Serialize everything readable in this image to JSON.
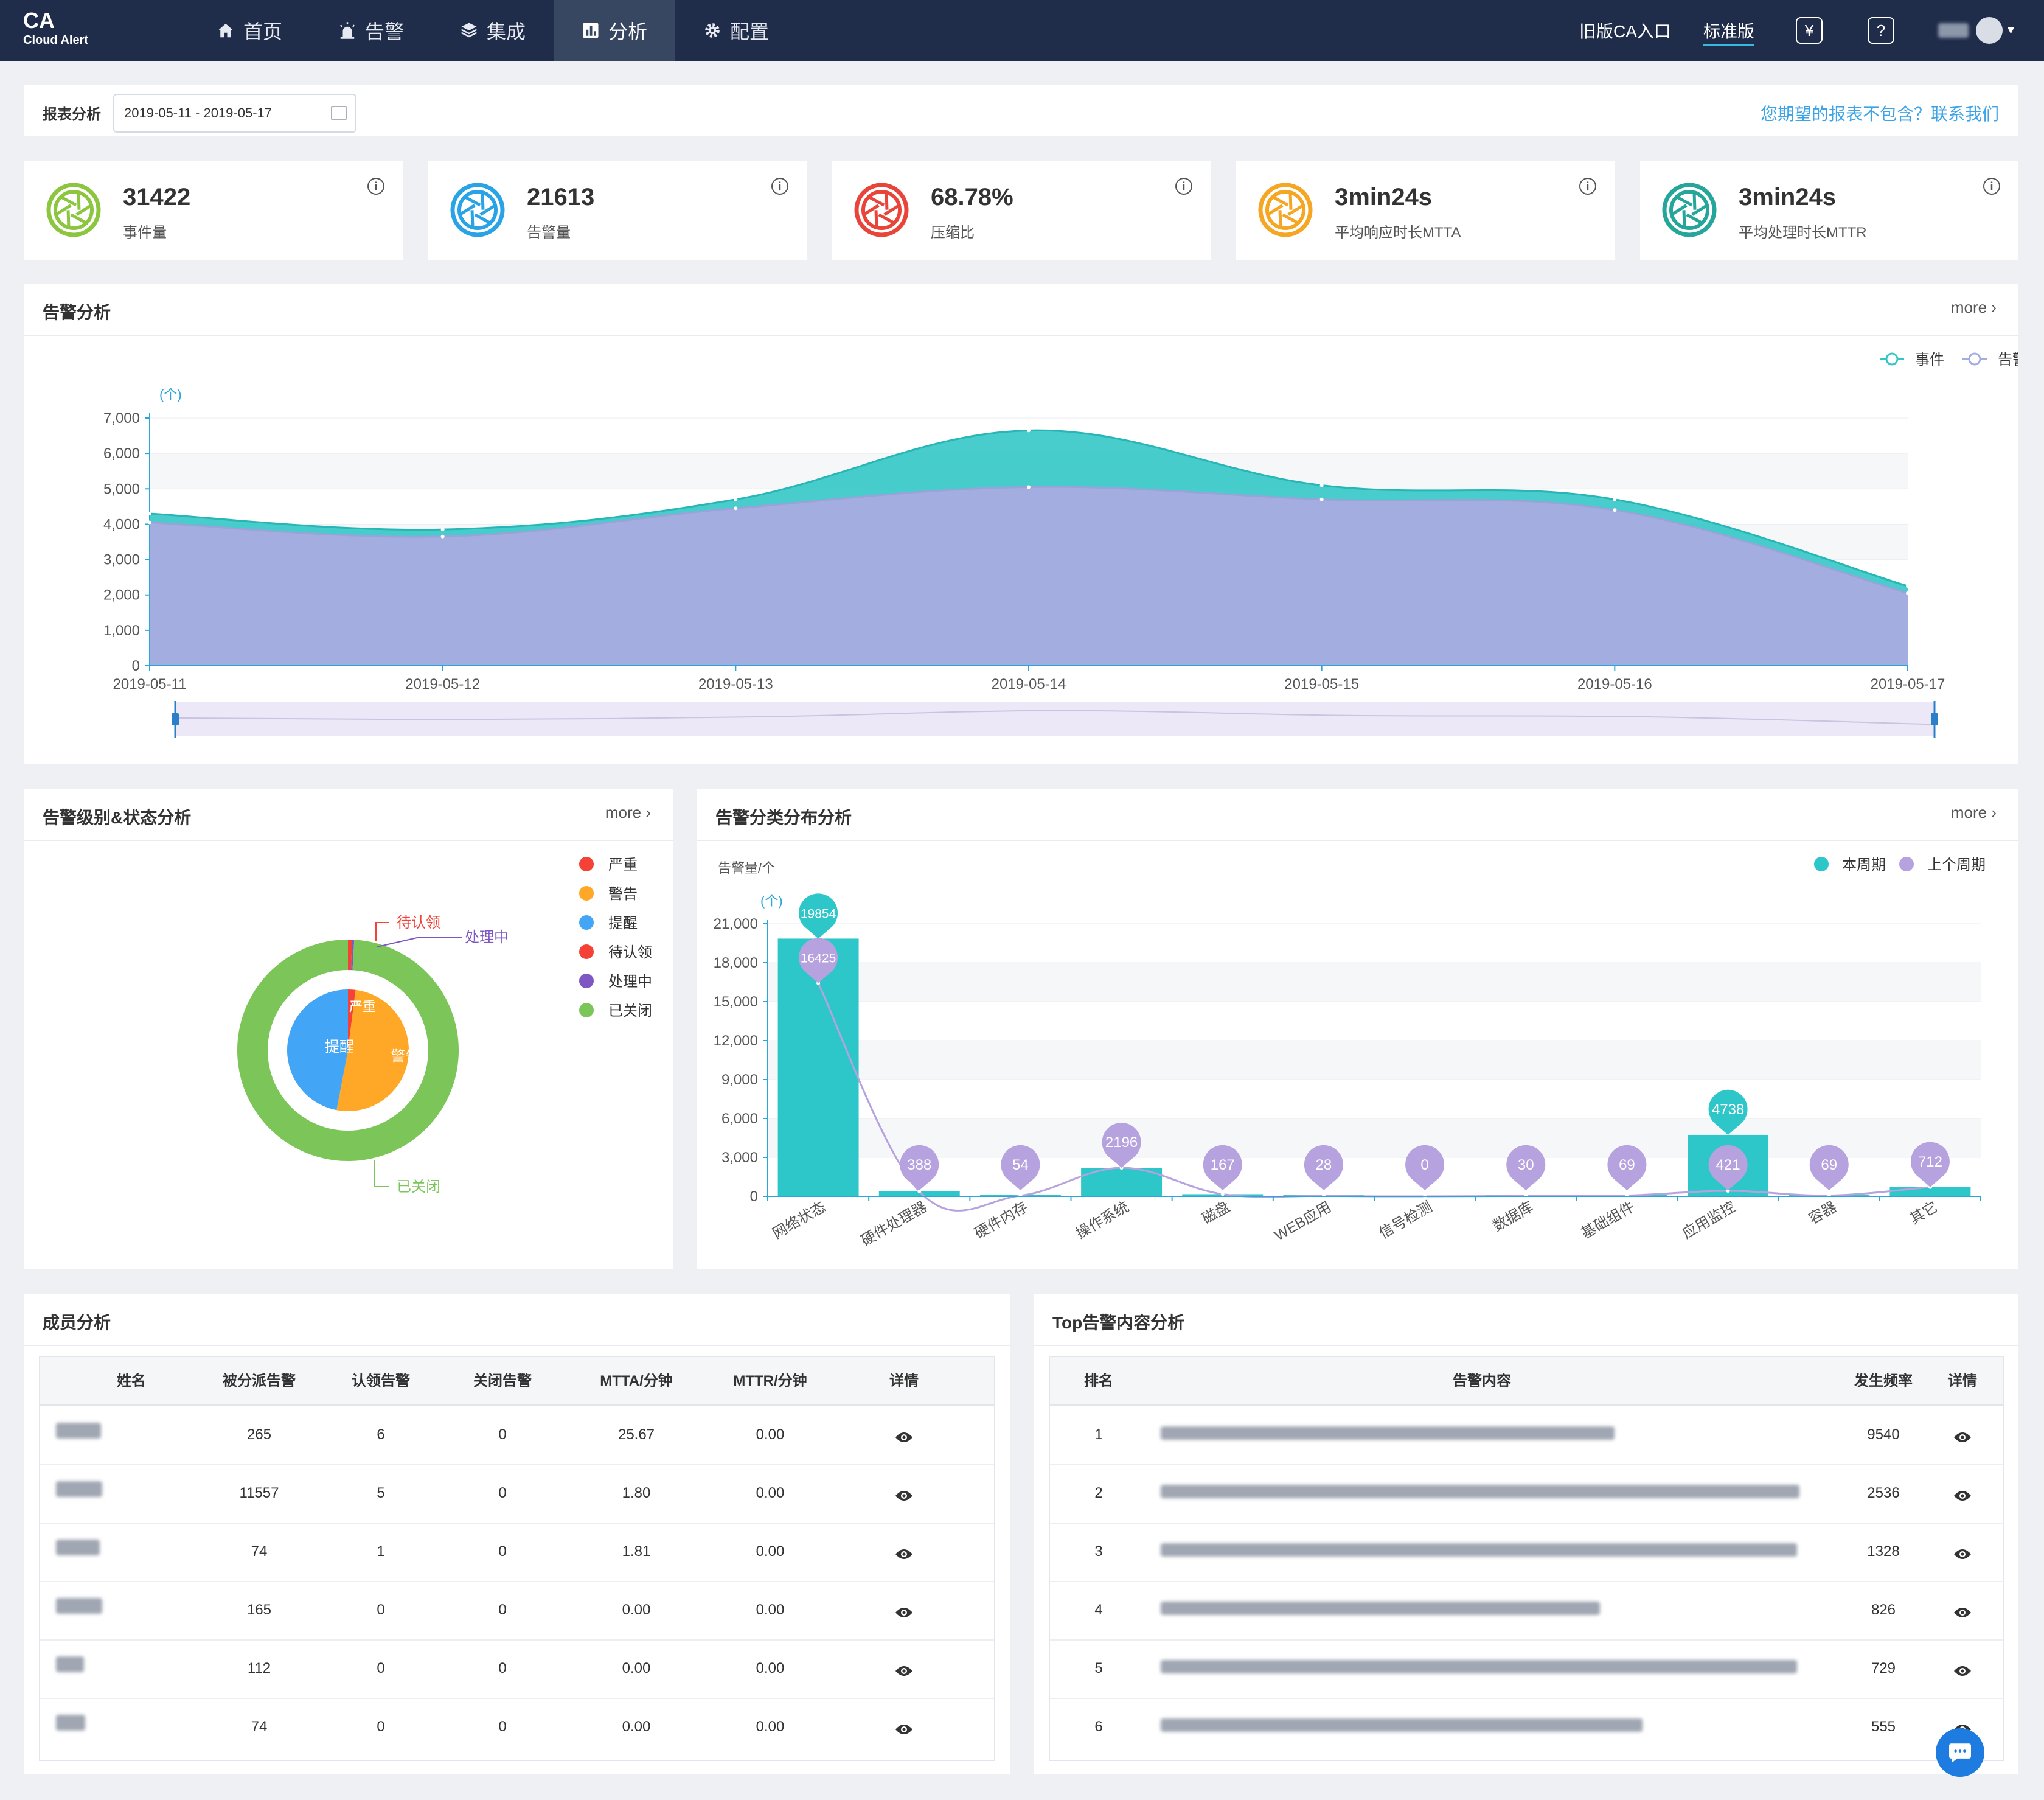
{
  "app": {
    "logo": "CA",
    "logo_sub": "Cloud Alert"
  },
  "nav": [
    {
      "label": "首页",
      "icon": "home-icon"
    },
    {
      "label": "告警",
      "icon": "alarm-light-icon"
    },
    {
      "label": "集成",
      "icon": "layers-icon"
    },
    {
      "label": "分析",
      "icon": "bar-chart-icon",
      "active": true
    },
    {
      "label": "配置",
      "icon": "gear-icon"
    }
  ],
  "topbar": {
    "old_entry": "旧版CA入口",
    "edition": "标准版",
    "yen_icon": "¥",
    "help_icon": "?"
  },
  "filter": {
    "label": "报表分析",
    "date_range": "2019-05-11 - 2019-05-17",
    "contact": "您期望的报表不包含？联系我们"
  },
  "kpis": [
    {
      "value": "31422",
      "label": "事件量",
      "color": "#8cc63f"
    },
    {
      "value": "21613",
      "label": "告警量",
      "color": "#29a3e6"
    },
    {
      "value": "68.78%",
      "label": "压缩比",
      "color": "#e8443a"
    },
    {
      "value": "3min24s",
      "label": "平均响应时长MTTA",
      "color": "#f5a623"
    },
    {
      "value": "3min24s",
      "label": "平均处理时长MTTR",
      "color": "#26a69a"
    }
  ],
  "alarm_analysis": {
    "title": "告警分析",
    "more": "more"
  },
  "level_status": {
    "title": "告警级别&状态分析",
    "more": "more",
    "legend": [
      {
        "label": "严重",
        "color": "#f44336"
      },
      {
        "label": "警告",
        "color": "#ffa726"
      },
      {
        "label": "提醒",
        "color": "#42a5f5"
      },
      {
        "label": "待认领",
        "color": "#f44336"
      },
      {
        "label": "处理中",
        "color": "#7e57c2"
      },
      {
        "label": "已关闭",
        "color": "#7cc659"
      }
    ],
    "callouts": {
      "pending": "待认领",
      "processing": "处理中",
      "closed": "已关闭",
      "inner_severe": "严重",
      "inner_warn": "警告",
      "inner_remind": "提醒"
    }
  },
  "category": {
    "title": "告警分类分布分析",
    "more": "more",
    "ylabel": "告警量/个",
    "legend_this": "本周期",
    "legend_last": "上个周期"
  },
  "members": {
    "title": "成员分析",
    "headers": [
      "姓名",
      "被分派告警",
      "认领告警",
      "关闭告警",
      "MTTA/分钟",
      "MTTR/分钟",
      "详情"
    ],
    "rows": [
      [
        "265",
        "6",
        "0",
        "25.67",
        "0.00"
      ],
      [
        "11557",
        "5",
        "0",
        "1.80",
        "0.00"
      ],
      [
        "74",
        "1",
        "0",
        "1.81",
        "0.00"
      ],
      [
        "165",
        "0",
        "0",
        "0.00",
        "0.00"
      ],
      [
        "112",
        "0",
        "0",
        "0.00",
        "0.00"
      ],
      [
        "74",
        "0",
        "0",
        "0.00",
        "0.00"
      ]
    ]
  },
  "top_alerts": {
    "title": "Top告警内容分析",
    "headers": [
      "排名",
      "告警内容",
      "发生频率",
      "详情"
    ],
    "rows": [
      [
        "1",
        "9540"
      ],
      [
        "2",
        "2536"
      ],
      [
        "3",
        "1328"
      ],
      [
        "4",
        "826"
      ],
      [
        "5",
        "729"
      ],
      [
        "6",
        "555"
      ]
    ]
  },
  "chart_data": [
    {
      "type": "area",
      "unit_label": "(个)",
      "x": [
        "2019-05-11",
        "2019-05-12",
        "2019-05-13",
        "2019-05-14",
        "2019-05-15",
        "2019-05-16",
        "2019-05-17"
      ],
      "series": [
        {
          "name": "事件",
          "values": [
            4300,
            3850,
            4700,
            6650,
            5100,
            4700,
            2250
          ],
          "color": "#34c6c6"
        },
        {
          "name": "告警",
          "values": [
            4050,
            3650,
            4450,
            5050,
            4700,
            4400,
            2050
          ],
          "color": "#a4addf"
        }
      ],
      "ylim": [
        0,
        7000
      ],
      "yticks": [
        "0",
        "1,000",
        "2,000",
        "3,000",
        "4,000",
        "5,000",
        "6,000",
        "7,000"
      ],
      "legend": "top-right",
      "grid": true
    },
    {
      "type": "pie",
      "inner": [
        {
          "name": "严重",
          "value": 2,
          "color": "#f44336"
        },
        {
          "name": "警告",
          "value": 51,
          "color": "#ffa726"
        },
        {
          "name": "提醒",
          "value": 47,
          "color": "#42a5f5"
        }
      ],
      "outer": [
        {
          "name": "待认领",
          "value": 0.6,
          "color": "#f44336"
        },
        {
          "name": "处理中",
          "value": 0.3,
          "color": "#7e57c2"
        },
        {
          "name": "已关闭",
          "value": 99.1,
          "color": "#7cc659"
        }
      ]
    },
    {
      "type": "bar",
      "unit_label": "(个)",
      "categories": [
        "网络状态",
        "硬件处理器",
        "硬件内存",
        "操作系统",
        "磁盘",
        "WEB应用",
        "信号检测",
        "数据库",
        "基础组件",
        "应用监控",
        "容器",
        "其它"
      ],
      "series": [
        {
          "name": "本周期",
          "values": [
            19854,
            388,
            54,
            2196,
            167,
            28,
            0,
            30,
            69,
            4738,
            69,
            712
          ],
          "color": "#2ec7c9"
        },
        {
          "name": "上个周期",
          "values": [
            16425,
            388,
            54,
            2196,
            167,
            28,
            0,
            30,
            69,
            421,
            69,
            712
          ],
          "color": "#b6a2de"
        }
      ],
      "markers_this": [
        {
          "i": 0,
          "label": "19854"
        },
        {
          "i": 9,
          "label": "4738"
        }
      ],
      "markers_last": [
        {
          "i": 0,
          "label": "16425"
        },
        {
          "i": 1,
          "label": "388"
        },
        {
          "i": 2,
          "label": "54"
        },
        {
          "i": 3,
          "label": "2196"
        },
        {
          "i": 4,
          "label": "167"
        },
        {
          "i": 5,
          "label": "28"
        },
        {
          "i": 6,
          "label": "0"
        },
        {
          "i": 7,
          "label": "30"
        },
        {
          "i": 8,
          "label": "69"
        },
        {
          "i": 9,
          "label": "421"
        },
        {
          "i": 10,
          "label": "69"
        },
        {
          "i": 11,
          "label": "712"
        }
      ],
      "ylim": [
        0,
        21000
      ],
      "yticks": [
        "0",
        "3,000",
        "6,000",
        "9,000",
        "12,000",
        "15,000",
        "18,000",
        "21,000"
      ],
      "legend": "top-right",
      "grid": true
    }
  ]
}
